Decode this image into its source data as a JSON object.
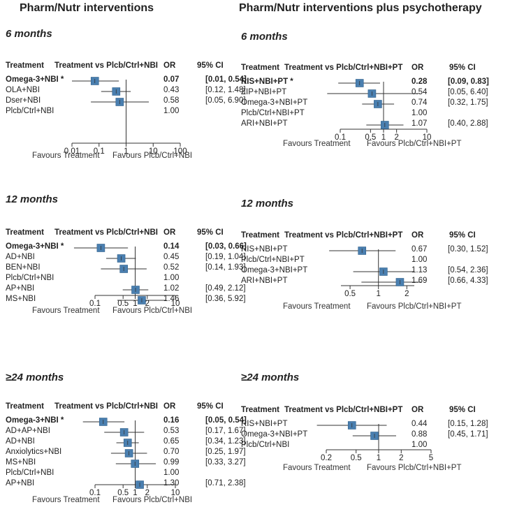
{
  "columns": {
    "left": "Pharm/Nutr interventions",
    "right": "Pharm/Nutr interventions plus psychotherapy"
  },
  "chart_data": [
    {
      "type": "forest",
      "period": "6 months",
      "headers": {
        "treatment": "Treatment",
        "comparison": "Treatment vs Plcb/Ctrl+NBI",
        "or": "OR",
        "ci": "95% CI"
      },
      "axis": {
        "scale": "log",
        "ticks": [
          0.01,
          0.1,
          1,
          10,
          100
        ],
        "tick_labels": [
          "0.01",
          "0.1",
          "1",
          "10",
          "100"
        ]
      },
      "favours": {
        "left": "Favours Treatment",
        "right": "Favours Plcb/Ctrl+NBI"
      },
      "rows": [
        {
          "label": "Omega-3+NBI *",
          "or": 0.07,
          "ci": [
            0.01,
            0.54
          ],
          "text": "0.07",
          "ci_text": "[0.01, 0.54]",
          "significant": true
        },
        {
          "label": "OLA+NBI",
          "or": 0.43,
          "ci": [
            0.12,
            1.48
          ],
          "text": "0.43",
          "ci_text": "[0.12, 1.48]",
          "significant": false
        },
        {
          "label": "Dser+NBI",
          "or": 0.58,
          "ci": [
            0.05,
            6.9
          ],
          "text": "0.58",
          "ci_text": "[0.05, 6.90]",
          "significant": false
        },
        {
          "label": "Plcb/Ctrl+NBI",
          "or": null,
          "ci": null,
          "text": "1.00",
          "ci_text": "",
          "significant": false
        }
      ]
    },
    {
      "type": "forest",
      "period": "12 months",
      "headers": {
        "treatment": "Treatment",
        "comparison": "Treatment vs Plcb/Ctrl+NBI",
        "or": "OR",
        "ci": "95% CI"
      },
      "axis": {
        "scale": "log",
        "ticks": [
          0.1,
          0.5,
          1,
          2,
          10
        ],
        "tick_labels": [
          "0.1",
          "0.5",
          "1",
          "2",
          "10"
        ]
      },
      "favours": {
        "left": "Favours Treatment",
        "right": "Favours Plcb/Ctrl+NBI"
      },
      "rows": [
        {
          "label": "Omega-3+NBI *",
          "or": 0.14,
          "ci": [
            0.03,
            0.66
          ],
          "text": "0.14",
          "ci_text": "[0.03, 0.66]",
          "significant": true
        },
        {
          "label": "AD+NBI",
          "or": 0.45,
          "ci": [
            0.19,
            1.04
          ],
          "text": "0.45",
          "ci_text": "[0.19, 1.04]",
          "significant": false
        },
        {
          "label": "BEN+NBI",
          "or": 0.52,
          "ci": [
            0.14,
            1.93
          ],
          "text": "0.52",
          "ci_text": "[0.14, 1.93]",
          "significant": false
        },
        {
          "label": "Plcb/Ctrl+NBI",
          "or": null,
          "ci": null,
          "text": "1.00",
          "ci_text": "",
          "significant": false
        },
        {
          "label": "AP+NBI",
          "or": 1.02,
          "ci": [
            0.49,
            2.12
          ],
          "text": "1.02",
          "ci_text": "[0.49, 2.12]",
          "significant": false
        },
        {
          "label": "MS+NBI",
          "or": 1.46,
          "ci": [
            0.36,
            5.92
          ],
          "text": "1.46",
          "ci_text": "[0.36, 5.92]",
          "significant": false
        }
      ]
    },
    {
      "type": "forest",
      "period": "≥24 months",
      "headers": {
        "treatment": "Treatment",
        "comparison": "Treatment vs Plcb/Ctrl+NBI",
        "or": "OR",
        "ci": "95% CI"
      },
      "axis": {
        "scale": "log",
        "ticks": [
          0.1,
          0.5,
          1,
          2,
          10
        ],
        "tick_labels": [
          "0.1",
          "0.5",
          "1",
          "2",
          "10"
        ]
      },
      "favours": {
        "left": "Favours Treatment",
        "right": "Favours Plcb/Ctrl+NBI"
      },
      "rows": [
        {
          "label": "Omega-3+NBI *",
          "or": 0.16,
          "ci": [
            0.05,
            0.54
          ],
          "text": "0.16",
          "ci_text": "[0.05, 0.54]",
          "significant": true
        },
        {
          "label": "AD+AP+NBI",
          "or": 0.53,
          "ci": [
            0.17,
            1.67
          ],
          "text": "0.53",
          "ci_text": "[0.17, 1.67]",
          "significant": false
        },
        {
          "label": "AD+NBI",
          "or": 0.65,
          "ci": [
            0.34,
            1.23
          ],
          "text": "0.65",
          "ci_text": "[0.34, 1.23]",
          "significant": false
        },
        {
          "label": "Anxiolytics+NBI",
          "or": 0.7,
          "ci": [
            0.25,
            1.97
          ],
          "text": "0.70",
          "ci_text": "[0.25, 1.97]",
          "significant": false
        },
        {
          "label": "MS+NBI",
          "or": 0.99,
          "ci": [
            0.33,
            3.27
          ],
          "text": "0.99",
          "ci_text": "[0.33, 3.27]",
          "significant": false
        },
        {
          "label": "Plcb/Ctrl+NBI",
          "or": null,
          "ci": null,
          "text": "1.00",
          "ci_text": "",
          "significant": false
        },
        {
          "label": "AP+NBI",
          "or": 1.3,
          "ci": [
            0.71,
            2.38
          ],
          "text": "1.30",
          "ci_text": "[0.71, 2.38]",
          "significant": false
        }
      ]
    },
    {
      "type": "forest",
      "period": "6 months",
      "headers": {
        "treatment": "Treatment",
        "comparison": "Treatment vs Plcb/Ctrl+NBI+PT",
        "or": "OR",
        "ci": "95% CI"
      },
      "axis": {
        "scale": "log",
        "ticks": [
          0.1,
          0.5,
          1,
          2,
          10
        ],
        "tick_labels": [
          "0.1",
          "0.5",
          "1",
          "2",
          "10"
        ]
      },
      "favours": {
        "left": "Favours Treatment",
        "right": "Favours Plcb/Ctrl+NBI+PT"
      },
      "rows": [
        {
          "label": "RIS+NBI+PT *",
          "or": 0.28,
          "ci": [
            0.09,
            0.83
          ],
          "text": "0.28",
          "ci_text": "[0.09, 0.83]",
          "significant": true
        },
        {
          "label": "ZIP+NBI+PT",
          "or": 0.54,
          "ci": [
            0.05,
            6.4
          ],
          "text": "0.54",
          "ci_text": "[0.05, 6.40]",
          "significant": false
        },
        {
          "label": "Omega-3+NBI+PT",
          "or": 0.74,
          "ci": [
            0.32,
            1.75
          ],
          "text": "0.74",
          "ci_text": "[0.32, 1.75]",
          "significant": false
        },
        {
          "label": "Plcb/Ctrl+NBI+PT",
          "or": null,
          "ci": null,
          "text": "1.00",
          "ci_text": "",
          "significant": false
        },
        {
          "label": "ARI+NBI+PT",
          "or": 1.07,
          "ci": [
            0.4,
            2.88
          ],
          "text": "1.07",
          "ci_text": "[0.40, 2.88]",
          "significant": false
        }
      ]
    },
    {
      "type": "forest",
      "period": "12 months",
      "headers": {
        "treatment": "Treatment",
        "comparison": "Treatment vs Plcb/Ctrl+NBI+PT",
        "or": "OR",
        "ci": "95% CI"
      },
      "axis": {
        "scale": "log",
        "ticks": [
          0.5,
          1,
          2
        ],
        "tick_labels": [
          "0.5",
          "1",
          "2"
        ]
      },
      "favours": {
        "left": "Favours Treatment",
        "right": "Favours Plcb/Ctrl+NBI+PT"
      },
      "rows": [
        {
          "label": "RIS+NBI+PT",
          "or": 0.67,
          "ci": [
            0.3,
            1.52
          ],
          "text": "0.67",
          "ci_text": "[0.30, 1.52]",
          "significant": false
        },
        {
          "label": "Plcb/Ctrl+NBI+PT",
          "or": null,
          "ci": null,
          "text": "1.00",
          "ci_text": "",
          "significant": false
        },
        {
          "label": "Omega-3+NBI+PT",
          "or": 1.13,
          "ci": [
            0.54,
            2.36
          ],
          "text": "1.13",
          "ci_text": "[0.54, 2.36]",
          "significant": false
        },
        {
          "label": "ARI+NBI+PT",
          "or": 1.69,
          "ci": [
            0.66,
            4.33
          ],
          "text": "1.69",
          "ci_text": "[0.66, 4.33]",
          "significant": false
        }
      ]
    },
    {
      "type": "forest",
      "period": "≥24 months",
      "headers": {
        "treatment": "Treatment",
        "comparison": "Treatment vs Plcb/Ctrl+NBI+PT",
        "or": "OR",
        "ci": "95% CI"
      },
      "axis": {
        "scale": "log",
        "ticks": [
          0.2,
          0.5,
          1,
          2,
          5
        ],
        "tick_labels": [
          "0.2",
          "0.5",
          "1",
          "2",
          "5"
        ]
      },
      "favours": {
        "left": "Favours Treatment",
        "right": "Favours Plcb/Ctrl+NBI+PT"
      },
      "rows": [
        {
          "label": "RIS+NBI+PT",
          "or": 0.44,
          "ci": [
            0.15,
            1.28
          ],
          "text": "0.44",
          "ci_text": "[0.15, 1.28]",
          "significant": false
        },
        {
          "label": "Omega-3+NBI+PT",
          "or": 0.88,
          "ci": [
            0.45,
            1.71
          ],
          "text": "0.88",
          "ci_text": "[0.45, 1.71]",
          "significant": false
        },
        {
          "label": "Plcb/Ctrl+NBI",
          "or": null,
          "ci": null,
          "text": "1.00",
          "ci_text": "",
          "significant": false
        }
      ]
    }
  ],
  "colors": {
    "marker": "#4a7fb0",
    "marker_edge": "#2f5f8a",
    "line": "#333333"
  }
}
